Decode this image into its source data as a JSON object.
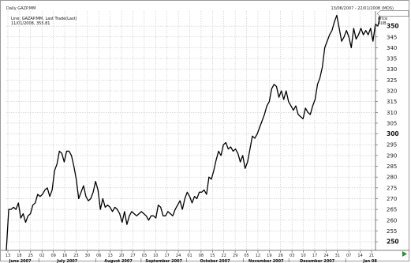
{
  "header": {
    "left": "Daily GAZP.MM",
    "right": "13/06/2007 - 22/01/2008 (MOS)"
  },
  "legend": {
    "line1": "Line; GAZAP.MM, Last Trade(Last)",
    "line2": "11/01/2008, 355.81"
  },
  "axis_units": {
    "line1": "Price",
    "line2": "RUB"
  },
  "chart_data": {
    "type": "line",
    "title": "",
    "xlabel": "",
    "ylabel": "",
    "ylim": [
      246,
      357
    ],
    "y_ticks": [
      250,
      255,
      260,
      265,
      270,
      275,
      280,
      285,
      290,
      295,
      300,
      305,
      310,
      315,
      320,
      325,
      330,
      335,
      340,
      345,
      350
    ],
    "y_bold_ticks": [
      250,
      300,
      350
    ],
    "grid": true,
    "day_ticks": [
      "13",
      "18",
      "25",
      "02",
      "09",
      "16",
      "23",
      "30",
      "06",
      "13",
      "20",
      "27",
      "03",
      "10",
      "17",
      "24",
      "01",
      "08",
      "15",
      "22",
      "29",
      "05",
      "12",
      "19",
      "26",
      "03",
      "10",
      "17",
      "24",
      "31",
      "07",
      "14",
      "21"
    ],
    "months": [
      "June 2007",
      "July 2007",
      "August 2007",
      "September 2007",
      "October 2007",
      "November 2007",
      "December 2007",
      "Jan 08"
    ],
    "last_value_marker": 355.81,
    "series": [
      {
        "values": [
          246,
          265,
          265,
          266,
          265,
          268,
          261,
          263,
          259,
          262,
          263,
          267,
          268,
          272,
          271,
          272,
          274,
          275,
          271,
          274,
          283,
          286,
          292,
          291,
          287,
          292,
          292,
          290,
          285,
          279,
          270,
          273,
          276,
          271,
          269,
          270,
          273,
          278,
          274,
          265,
          270,
          266,
          267,
          266,
          264,
          266,
          265,
          263,
          259,
          264,
          258,
          262,
          264,
          263,
          262,
          263,
          264,
          263,
          262,
          260,
          262,
          262,
          261,
          267,
          266,
          262,
          262,
          264,
          263,
          262,
          265,
          267,
          269,
          265,
          270,
          273,
          271,
          268,
          271,
          270,
          273,
          273,
          274,
          272,
          280,
          279,
          283,
          288,
          292,
          290,
          295,
          296,
          293,
          294,
          292,
          293,
          291,
          287,
          290,
          284,
          287,
          293,
          299,
          298,
          300,
          303,
          306,
          309,
          313,
          315,
          321,
          323,
          322,
          317,
          320,
          316,
          320,
          315,
          313,
          311,
          313,
          309,
          308,
          307,
          312,
          310,
          309,
          313,
          316,
          323,
          326,
          331,
          340,
          343,
          346,
          348,
          352,
          355,
          349,
          343,
          345,
          348,
          345,
          340,
          349,
          344,
          346,
          349,
          346,
          348,
          346,
          349,
          343,
          351,
          350,
          355
        ]
      }
    ]
  }
}
